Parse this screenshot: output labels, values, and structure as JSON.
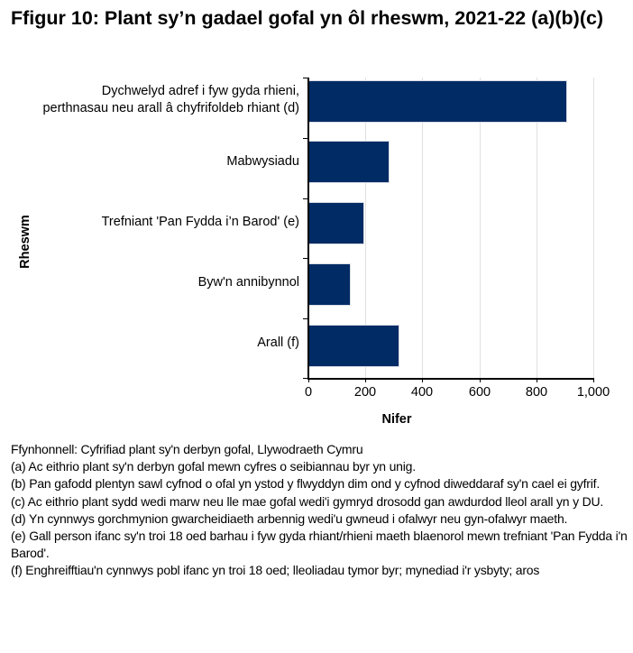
{
  "title": "Ffigur 10: Plant sy’n gadael gofal yn ôl rheswm, 2021-22 (a)(b)(c)",
  "chart_data": {
    "type": "bar",
    "orientation": "horizontal",
    "title": "Ffigur 10: Plant sy’n gadael gofal yn ôl rheswm, 2021-22 (a)(b)(c)",
    "categories": [
      "Dychwelyd adref i fyw gyda rhieni, perthnasau neu arall â chyfrifoldeb rhiant (d)",
      "Mabwysiadu",
      "Trefniant 'Pan Fydda i’n Barod' (e)",
      "Byw'n annibynnol",
      "Arall (f)"
    ],
    "values": [
      905,
      282,
      193,
      146,
      316
    ],
    "xlabel": "Nifer",
    "ylabel": "Rheswm",
    "xlim": [
      0,
      1000
    ],
    "xticks": [
      "0",
      "200",
      "400",
      "600",
      "800",
      "1,000"
    ],
    "grid": "vertical",
    "legend": "none",
    "bar_color": "#002b65"
  },
  "labels": {
    "cat0_line1": "Dychwelyd adref i fyw gyda rhieni,",
    "cat0_line2": "perthnasau neu arall â chyfrifoldeb rhiant (d)",
    "cat1": "Mabwysiadu",
    "cat2": "Trefniant 'Pan Fydda i’n Barod' (e)",
    "cat3": "Byw'n annibynnol",
    "cat4": "Arall (f)"
  },
  "notes": [
    "Ffynhonnell: Cyfrifiad plant sy'n derbyn gofal, Llywodraeth Cymru",
    "(a) Ac eithrio plant sy'n derbyn gofal mewn cyfres o seibiannau byr yn unig.",
    "(b) Pan gafodd plentyn sawl cyfnod o ofal yn ystod y flwyddyn dim ond y cyfnod diweddaraf sy'n cael ei gyfrif.",
    "(c) Ac eithrio plant sydd wedi marw neu lle mae gofal wedi'i gymryd drosodd gan awdurdod lleol arall yn y DU.",
    "(d) Yn cynnwys gorchmynion gwarcheidiaeth arbennig wedi'u gwneud i ofalwyr neu gyn-ofalwyr maeth.",
    "(e) Gall person ifanc sy'n troi 18 oed barhau i fyw gyda rhiant/rhieni maeth blaenorol mewn trefniant 'Pan Fydda i'n Barod'.",
    "(f) Enghreifftiau'n cynnwys pobl ifanc yn troi 18 oed; lleoliadau tymor byr; mynediad i'r ysbyty; aros"
  ]
}
